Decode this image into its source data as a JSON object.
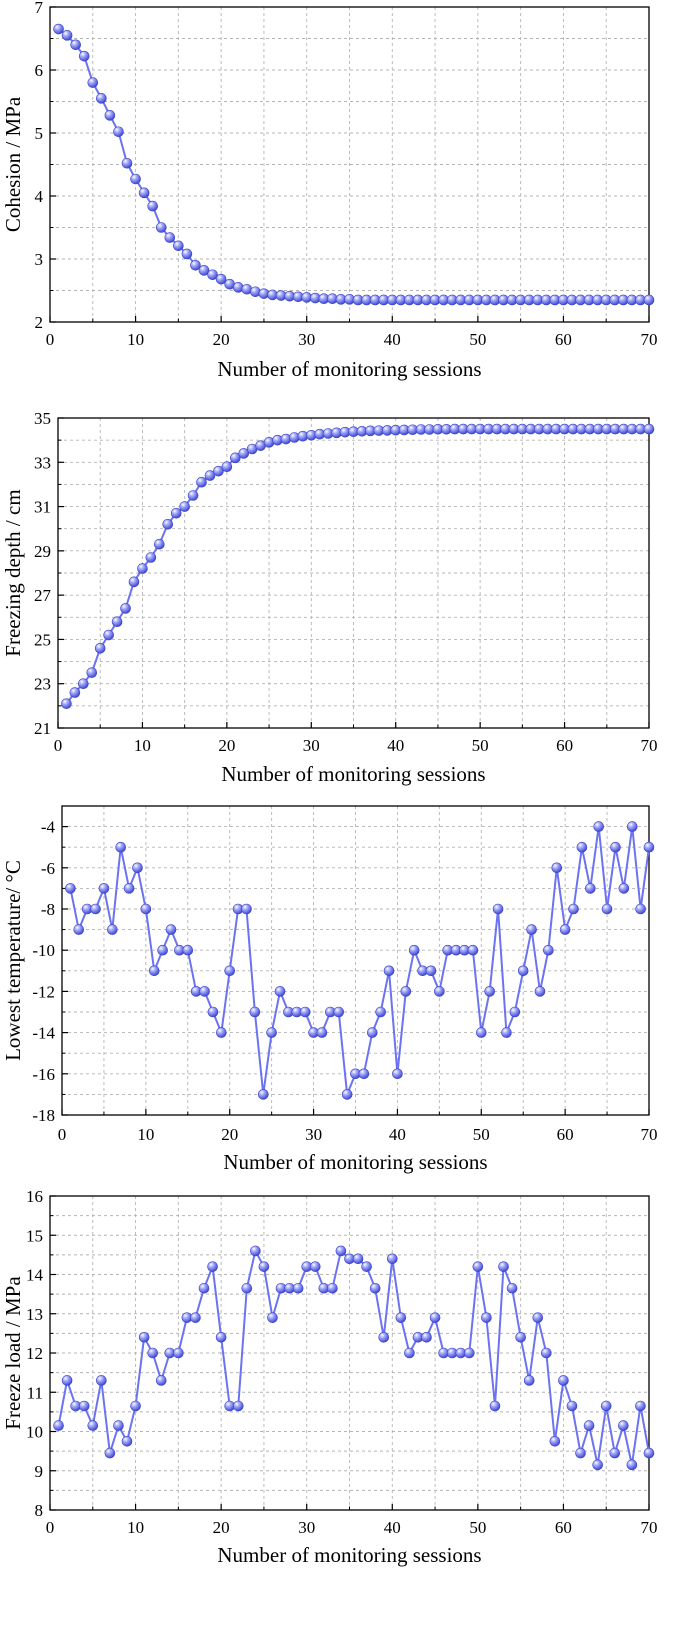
{
  "colors": {
    "line": "#6b73f2",
    "marker_edge": "#3a44c8",
    "grid": "#b4b4b4",
    "axis": "#000000"
  },
  "chart_data": [
    {
      "type": "line",
      "xlabel": "Number of monitoring sessions",
      "ylabel": "Cohesion / MPa",
      "xlim": [
        0,
        70
      ],
      "ylim": [
        2,
        7
      ],
      "xticks": [
        0,
        10,
        20,
        30,
        40,
        50,
        60,
        70
      ],
      "yticks": [
        2,
        3,
        4,
        5,
        6,
        7
      ],
      "grid": true,
      "series": [
        {
          "x": [
            1,
            2,
            3,
            4,
            5,
            6,
            7,
            8,
            9,
            10,
            11,
            12,
            13,
            14,
            15,
            16,
            17,
            18,
            19,
            20,
            21,
            22,
            23,
            24,
            25,
            26,
            27,
            28,
            29,
            30,
            31,
            32,
            33,
            34,
            35,
            36,
            37,
            38,
            39,
            40,
            41,
            42,
            43,
            44,
            45,
            46,
            47,
            48,
            49,
            50,
            51,
            52,
            53,
            54,
            55,
            56,
            57,
            58,
            59,
            60,
            61,
            62,
            63,
            64,
            65,
            66,
            67,
            68,
            69,
            70
          ],
          "y": [
            6.65,
            6.55,
            6.4,
            6.22,
            5.8,
            5.55,
            5.28,
            5.02,
            4.52,
            4.27,
            4.05,
            3.84,
            3.5,
            3.34,
            3.21,
            3.08,
            2.9,
            2.82,
            2.75,
            2.68,
            2.6,
            2.55,
            2.52,
            2.48,
            2.45,
            2.43,
            2.42,
            2.41,
            2.4,
            2.39,
            2.38,
            2.37,
            2.37,
            2.36,
            2.36,
            2.35,
            2.35,
            2.35,
            2.35,
            2.35,
            2.35,
            2.35,
            2.35,
            2.35,
            2.35,
            2.35,
            2.35,
            2.35,
            2.35,
            2.35,
            2.35,
            2.35,
            2.35,
            2.35,
            2.35,
            2.35,
            2.35,
            2.35,
            2.35,
            2.35,
            2.35,
            2.35,
            2.35,
            2.35,
            2.35,
            2.35,
            2.35,
            2.35,
            2.35,
            2.35
          ]
        }
      ]
    },
    {
      "type": "line",
      "xlabel": "Number of monitoring sessions",
      "ylabel": "Freezing depth / cm",
      "xlim": [
        0,
        70
      ],
      "ylim": [
        21,
        35
      ],
      "xticks": [
        0,
        10,
        20,
        30,
        40,
        50,
        60,
        70
      ],
      "yticks": [
        21,
        23,
        25,
        27,
        29,
        31,
        33,
        35
      ],
      "grid": true,
      "series": [
        {
          "x": [
            1,
            2,
            3,
            4,
            5,
            6,
            7,
            8,
            9,
            10,
            11,
            12,
            13,
            14,
            15,
            16,
            17,
            18,
            19,
            20,
            21,
            22,
            23,
            24,
            25,
            26,
            27,
            28,
            29,
            30,
            31,
            32,
            33,
            34,
            35,
            36,
            37,
            38,
            39,
            40,
            41,
            42,
            43,
            44,
            45,
            46,
            47,
            48,
            49,
            50,
            51,
            52,
            53,
            54,
            55,
            56,
            57,
            58,
            59,
            60,
            61,
            62,
            63,
            64,
            65,
            66,
            67,
            68,
            69,
            70
          ],
          "y": [
            22.1,
            22.6,
            23.0,
            23.5,
            24.6,
            25.2,
            25.8,
            26.4,
            27.6,
            28.2,
            28.7,
            29.3,
            30.2,
            30.7,
            31.0,
            31.5,
            32.1,
            32.4,
            32.6,
            32.8,
            33.2,
            33.4,
            33.6,
            33.75,
            33.9,
            34.0,
            34.05,
            34.12,
            34.18,
            34.22,
            34.27,
            34.3,
            34.33,
            34.36,
            34.38,
            34.4,
            34.42,
            34.43,
            34.44,
            34.45,
            34.46,
            34.47,
            34.48,
            34.48,
            34.49,
            34.49,
            34.5,
            34.5,
            34.5,
            34.5,
            34.5,
            34.5,
            34.5,
            34.5,
            34.5,
            34.5,
            34.5,
            34.5,
            34.5,
            34.5,
            34.5,
            34.5,
            34.5,
            34.5,
            34.5,
            34.5,
            34.5,
            34.5,
            34.5,
            34.5
          ]
        }
      ]
    },
    {
      "type": "line",
      "xlabel": "Number of monitoring sessions",
      "ylabel": "Lowest temperature/ °C",
      "xlim": [
        0,
        70
      ],
      "ylim": [
        -18,
        -3
      ],
      "xticks": [
        0,
        10,
        20,
        30,
        40,
        50,
        60,
        70
      ],
      "yticks": [
        -18,
        -16,
        -14,
        -12,
        -10,
        -8,
        -6,
        -4
      ],
      "grid": true,
      "series": [
        {
          "x": [
            1,
            2,
            3,
            4,
            5,
            6,
            7,
            8,
            9,
            10,
            11,
            12,
            13,
            14,
            15,
            16,
            17,
            18,
            19,
            20,
            21,
            22,
            23,
            24,
            25,
            26,
            27,
            28,
            29,
            30,
            31,
            32,
            33,
            34,
            35,
            36,
            37,
            38,
            39,
            40,
            41,
            42,
            43,
            44,
            45,
            46,
            47,
            48,
            49,
            50,
            51,
            52,
            53,
            54,
            55,
            56,
            57,
            58,
            59,
            60,
            61,
            62,
            63,
            64,
            65,
            66,
            67,
            68,
            69,
            70
          ],
          "y": [
            -7,
            -9,
            -8,
            -8,
            -7,
            -9,
            -5,
            -7,
            -6,
            -8,
            -11,
            -10,
            -9,
            -10,
            -10,
            -12,
            -12,
            -13,
            -14,
            -11,
            -8,
            -8,
            -13,
            -17,
            -14,
            -12,
            -13,
            -13,
            -13,
            -14,
            -14,
            -13,
            -13,
            -17,
            -16,
            -16,
            -14,
            -13,
            -11,
            -16,
            -12,
            -10,
            -11,
            -11,
            -12,
            -10,
            -10,
            -10,
            -10,
            -14,
            -12,
            -8,
            -14,
            -13,
            -11,
            -9,
            -12,
            -10,
            -6,
            -9,
            -8,
            -5,
            -7,
            -4,
            -8,
            -5,
            -7,
            -4,
            -8,
            -5
          ]
        }
      ]
    },
    {
      "type": "line",
      "xlabel": "Number of monitoring sessions",
      "ylabel": "Freeze load / MPa",
      "xlim": [
        0,
        70
      ],
      "ylim": [
        8,
        16
      ],
      "xticks": [
        0,
        10,
        20,
        30,
        40,
        50,
        60,
        70
      ],
      "yticks": [
        8,
        9,
        10,
        11,
        12,
        13,
        14,
        15,
        16
      ],
      "grid": true,
      "series": [
        {
          "x": [
            1,
            2,
            3,
            4,
            5,
            6,
            7,
            8,
            9,
            10,
            11,
            12,
            13,
            14,
            15,
            16,
            17,
            18,
            19,
            20,
            21,
            22,
            23,
            24,
            25,
            26,
            27,
            28,
            29,
            30,
            31,
            32,
            33,
            34,
            35,
            36,
            37,
            38,
            39,
            40,
            41,
            42,
            43,
            44,
            45,
            46,
            47,
            48,
            49,
            50,
            51,
            52,
            53,
            54,
            55,
            56,
            57,
            58,
            59,
            60,
            61,
            62,
            63,
            64,
            65,
            66,
            67,
            68,
            69,
            70
          ],
          "y": [
            10.15,
            11.3,
            10.65,
            10.65,
            10.15,
            11.3,
            9.45,
            10.15,
            9.75,
            10.65,
            12.4,
            12.0,
            11.3,
            12.0,
            12.0,
            12.9,
            12.9,
            13.65,
            14.2,
            12.4,
            10.65,
            10.65,
            13.65,
            14.6,
            14.2,
            12.9,
            13.65,
            13.65,
            13.65,
            14.2,
            14.2,
            13.65,
            13.65,
            14.6,
            14.4,
            14.4,
            14.2,
            13.65,
            12.4,
            14.4,
            12.9,
            12.0,
            12.4,
            12.4,
            12.9,
            12.0,
            12.0,
            12.0,
            12.0,
            14.2,
            12.9,
            10.65,
            14.2,
            13.65,
            12.4,
            11.3,
            12.9,
            12.0,
            9.75,
            11.3,
            10.65,
            9.45,
            10.15,
            9.15,
            10.65,
            9.45,
            10.15,
            9.15,
            10.65,
            9.45
          ]
        }
      ]
    }
  ]
}
